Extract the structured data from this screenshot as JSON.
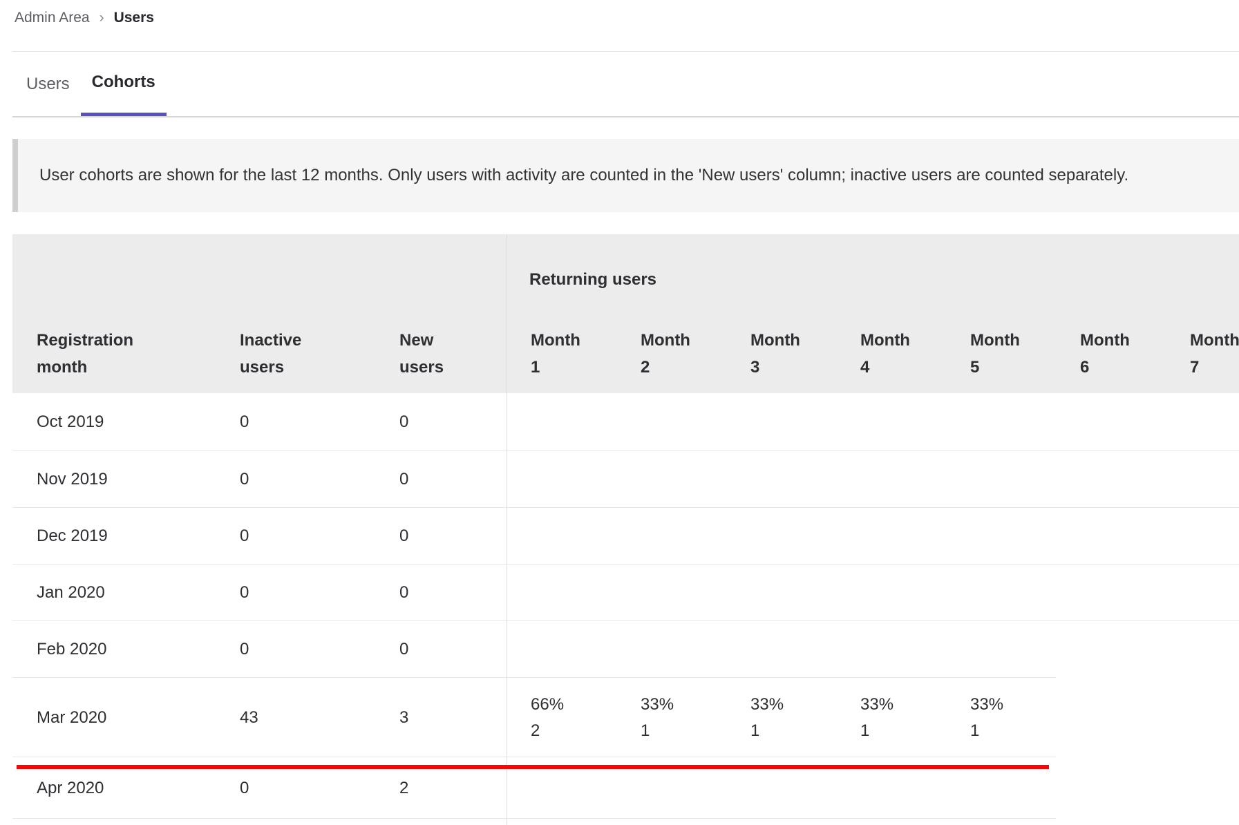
{
  "breadcrumb": {
    "items": [
      "Admin Area",
      "Users"
    ],
    "separator": "›"
  },
  "tabs": {
    "users": "Users",
    "cohorts": "Cohorts"
  },
  "banner": {
    "text": "User cohorts are shown for the last 12 months. Only users with activity are counted in the 'New users' column; inactive users are counted separately."
  },
  "table": {
    "group_header": "Returning users",
    "headers": {
      "col1": "Registration month",
      "col2": "Inactive users",
      "col3": "New users"
    },
    "months": [
      "Month 1",
      "Month 2",
      "Month 3",
      "Month 4",
      "Month 5",
      "Month 6",
      "Month 7"
    ],
    "rows": [
      {
        "label": "Oct 2019",
        "inactive": "0",
        "new": "0"
      },
      {
        "label": "Nov 2019",
        "inactive": "0",
        "new": "0"
      },
      {
        "label": "Dec 2019",
        "inactive": "0",
        "new": "0"
      },
      {
        "label": "Jan 2020",
        "inactive": "0",
        "new": "0"
      },
      {
        "label": "Feb 2020",
        "inactive": "0",
        "new": "0"
      },
      {
        "label": "Mar 2020",
        "inactive": "43",
        "new": "3",
        "cohort": [
          {
            "pct": "66%",
            "count": "2"
          },
          {
            "pct": "33%",
            "count": "1"
          },
          {
            "pct": "33%",
            "count": "1"
          },
          {
            "pct": "33%",
            "count": "1"
          },
          {
            "pct": "33%",
            "count": "1"
          }
        ]
      },
      {
        "label": "Apr 2020",
        "inactive": "0",
        "new": "2"
      }
    ]
  },
  "annotation": {
    "type": "red-underline-highlight"
  },
  "colors": {
    "accent_indigo": "#5a51c0",
    "annotation_red": "#fa0505",
    "header_bg": "#ececec",
    "banner_bg": "#f5f5f5"
  }
}
